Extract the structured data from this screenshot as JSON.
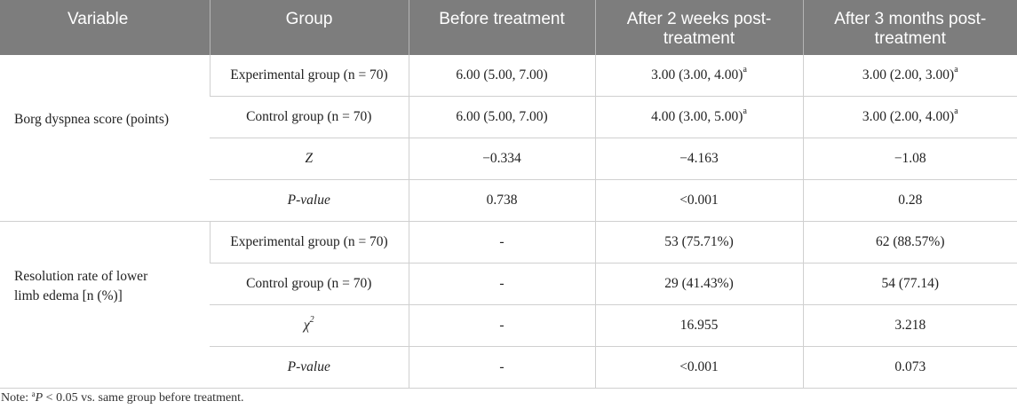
{
  "headers": [
    "Variable",
    "Group",
    "Before treatment",
    "After 2 weeks post-treatment",
    "After 3 months post-treatment"
  ],
  "sections": [
    {
      "variable": "Borg dyspnea score (points)",
      "rows": [
        {
          "group": "Experimental group (n = 70)",
          "before": "6.00 (5.00, 7.00)",
          "week2": "3.00 (3.00, 4.00)",
          "week2_sup": "a",
          "month3": "3.00 (2.00, 3.00)",
          "month3_sup": "a"
        },
        {
          "group": "Control group (n = 70)",
          "before": "6.00 (5.00, 7.00)",
          "week2": "4.00 (3.00, 5.00)",
          "week2_sup": "a",
          "month3": "3.00 (2.00, 4.00)",
          "month3_sup": "a"
        },
        {
          "group": "Z",
          "before": "−0.334",
          "week2": "−4.163",
          "month3": "−1.08"
        },
        {
          "group": "P-value",
          "before": "0.738",
          "week2": "<0.001",
          "month3": "0.28"
        }
      ]
    },
    {
      "variable": "Resolution rate of lower limb edema [n (%)]",
      "rows": [
        {
          "group": "Experimental group (n = 70)",
          "before": "-",
          "week2": "53 (75.71%)",
          "month3": "62 (88.57%)"
        },
        {
          "group": "Control group (n = 70)",
          "before": "-",
          "week2": "29 (41.43%)",
          "month3": "54 (77.14)"
        },
        {
          "group": "χ",
          "group_sup": "2",
          "before": "-",
          "week2": "16.955",
          "month3": "3.218"
        },
        {
          "group": "P-value",
          "before": "-",
          "week2": "<0.001",
          "month3": "0.073"
        }
      ]
    }
  ],
  "note": {
    "prefix": "Note: ",
    "sup": "a",
    "italic": "P",
    "text": " < 0.05 vs. same group before treatment."
  }
}
